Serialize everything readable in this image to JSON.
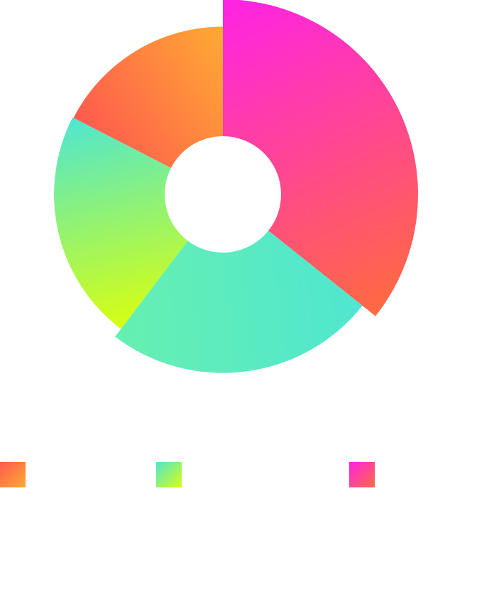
{
  "chart_data": {
    "type": "pie",
    "variant": "rose-donut",
    "title": "",
    "categories": [
      "",
      "",
      "",
      ""
    ],
    "values": [
      45,
      31,
      28,
      22
    ],
    "relative_radius": [
      1.0,
      0.915,
      0.865,
      0.86
    ],
    "legend": {
      "placement": "bottom",
      "entries": [
        {
          "label": "",
          "color_from": "#ff5a4e",
          "color_to": "#ffaa33"
        },
        {
          "label": "",
          "color_from": "#50e6d0",
          "color_to": "#d8ff10"
        },
        {
          "label": "",
          "color_from": "#ff22e6",
          "color_to": "#ff6a40"
        }
      ]
    }
  },
  "colors": {
    "slice_0_start": "#ff22e6",
    "slice_0_end": "#ff6a40",
    "slice_1_start": "#50e6d0",
    "slice_1_end": "#66f0b0",
    "slice_2_start": "#d8ff10",
    "slice_2_end": "#50e6d0",
    "slice_3_start": "#ff5a4e",
    "slice_3_end": "#ffaa33"
  }
}
